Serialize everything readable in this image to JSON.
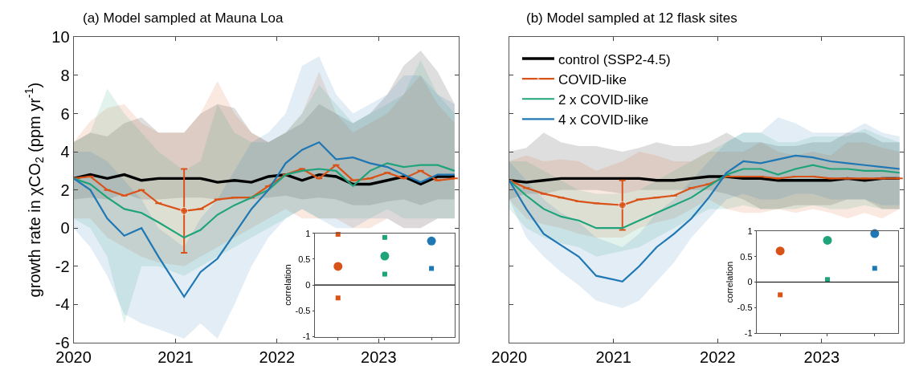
{
  "chart_data": [
    {
      "type": "line",
      "title": "(a) Model sampled at Mauna Loa",
      "ylabel": "growth rate in χCO$_{2}$ (ppm yr$^{-1}$)",
      "x": [
        "2020-01",
        "2020-03",
        "2020-05",
        "2020-07",
        "2020-09",
        "2020-11",
        "2021-02",
        "2021-04",
        "2021-06",
        "2021-08",
        "2021-10",
        "2021-12",
        "2022-02",
        "2022-04",
        "2022-06",
        "2022-08",
        "2022-10",
        "2022-12",
        "2023-02",
        "2023-04",
        "2023-06",
        "2023-08",
        "2023-10"
      ],
      "xlim": [
        "2020-01-01",
        "2023-10-16"
      ],
      "xticks": [
        "2020",
        "2021",
        "2022",
        "2023"
      ],
      "ylim": [
        -6,
        10
      ],
      "yticks": [
        -6,
        -4,
        -2,
        0,
        2,
        4,
        6,
        8,
        10
      ],
      "series": [
        {
          "color": "#000000",
          "values": [
            2.6,
            2.8,
            2.6,
            2.8,
            2.5,
            2.6,
            2.6,
            2.6,
            2.4,
            2.5,
            2.4,
            2.7,
            2.8,
            2.5,
            2.8,
            2.7,
            2.3,
            2.3,
            2.5,
            2.7,
            2.3,
            2.7,
            2.7
          ],
          "lower": [
            1.5,
            1.6,
            1.5,
            1.8,
            1.5,
            1.5,
            1.6,
            1.6,
            1.5,
            1.5,
            1.5,
            1.6,
            1.7,
            1.5,
            1.6,
            1.5,
            1.2,
            1.2,
            1.4,
            1.5,
            1.2,
            1.5,
            1.5
          ],
          "upper": [
            4.5,
            5.0,
            4.8,
            5.5,
            5.8,
            5.0,
            5.0,
            6.0,
            6.5,
            6.3,
            5.0,
            4.5,
            5.0,
            5.5,
            6.5,
            6.0,
            5.5,
            6.0,
            7.0,
            8.5,
            9.3,
            8.2,
            6.5
          ]
        },
        {
          "color": "#d95319",
          "values": [
            2.6,
            2.7,
            2.0,
            1.7,
            2.0,
            1.3,
            0.9,
            1.0,
            1.5,
            1.6,
            1.6,
            2.2,
            2.8,
            3.1,
            2.6,
            3.3,
            2.5,
            2.6,
            2.9,
            2.6,
            3.0,
            2.5,
            2.6
          ],
          "errors": [
            null,
            null,
            null,
            null,
            null,
            null,
            [
              -1.3,
              3.1
            ],
            null,
            null,
            null,
            null,
            null,
            null,
            null,
            null,
            null,
            null,
            null,
            null,
            null,
            null,
            null,
            null
          ],
          "lower": [
            0.5,
            0.5,
            -0.5,
            -1.0,
            -1.5,
            -1.8,
            -2.0,
            -1.5,
            -1.0,
            -0.5,
            0.0,
            0.5,
            1.0,
            0.5,
            0.5,
            0.5,
            0.0,
            0.0,
            0.5,
            0.0,
            0.0,
            0.5,
            0.5
          ],
          "upper": [
            4.5,
            5.6,
            6.3,
            6.5,
            5.5,
            5.0,
            5.0,
            6.0,
            7.7,
            6.0,
            5.0,
            4.5,
            5.0,
            6.0,
            8.2,
            6.0,
            5.0,
            5.5,
            6.0,
            7.0,
            8.0,
            6.5,
            5.5
          ]
        },
        {
          "color": "#1fa37a",
          "values": [
            2.6,
            2.3,
            1.6,
            1.0,
            0.8,
            0.3,
            -0.5,
            -0.1,
            0.7,
            1.2,
            1.6,
            2.0,
            2.8,
            3.0,
            3.1,
            3.0,
            2.2,
            3.0,
            3.4,
            3.2,
            3.3,
            3.3,
            3.0
          ],
          "lower": [
            0.5,
            0.0,
            -1.5,
            -5.0,
            -2.0,
            -2.0,
            -2.5,
            -2.0,
            -1.5,
            -1.0,
            -0.5,
            0.0,
            0.5,
            1.0,
            0.5,
            0.5,
            0.5,
            0.5,
            1.0,
            0.5,
            0.5,
            0.5,
            0.5
          ],
          "upper": [
            4.5,
            5.0,
            7.3,
            6.0,
            5.0,
            4.0,
            3.0,
            3.5,
            6.5,
            5.0,
            4.5,
            4.5,
            5.0,
            6.0,
            7.5,
            6.5,
            5.5,
            6.0,
            6.5,
            7.0,
            8.8,
            7.0,
            6.0
          ]
        },
        {
          "color": "#1f77b4",
          "values": [
            2.6,
            2.0,
            0.5,
            -0.4,
            0.0,
            -1.5,
            -3.6,
            -2.3,
            -1.6,
            -0.3,
            1.0,
            2.0,
            3.4,
            4.1,
            4.5,
            3.6,
            3.7,
            3.4,
            3.2,
            2.8,
            2.4,
            2.8,
            2.8
          ],
          "lower": [
            0.0,
            -1.0,
            -2.5,
            -4.5,
            -5.0,
            -5.3,
            -5.8,
            -5.0,
            -5.8,
            -4.0,
            -2.0,
            -0.5,
            0.5,
            1.0,
            0.5,
            0.0,
            0.0,
            0.5,
            0.5,
            0.0,
            0.0,
            0.5,
            0.5
          ],
          "upper": [
            4.0,
            4.0,
            3.5,
            2.5,
            1.5,
            0.0,
            -1.0,
            0.5,
            1.5,
            3.0,
            4.5,
            5.0,
            6.0,
            8.5,
            9.0,
            7.0,
            6.0,
            6.5,
            7.0,
            8.0,
            8.0,
            7.0,
            6.5
          ]
        }
      ]
    },
    {
      "type": "line",
      "title": "(b) Model sampled at 12 flask sites",
      "tick_labels": "x",
      "x": [
        "2020-01",
        "2020-03",
        "2020-05",
        "2020-07",
        "2020-09",
        "2020-11",
        "2021-02",
        "2021-04",
        "2021-06",
        "2021-08",
        "2021-10",
        "2021-12",
        "2022-02",
        "2022-04",
        "2022-06",
        "2022-08",
        "2022-10",
        "2022-12",
        "2023-02",
        "2023-04",
        "2023-06",
        "2023-08",
        "2023-10"
      ],
      "xlim": [
        "2020-01-01",
        "2023-10-16"
      ],
      "xticks": [
        "2020",
        "2021",
        "2022",
        "2023"
      ],
      "ylim": [
        -6,
        10
      ],
      "yticks": [
        -6,
        -4,
        -2,
        0,
        2,
        4,
        6,
        8,
        10
      ],
      "legend": "top left",
      "series": [
        {
          "name": "control (SSP2-4.5)",
          "color": "#000000",
          "values": [
            2.5,
            2.4,
            2.5,
            2.6,
            2.6,
            2.6,
            2.6,
            2.6,
            2.5,
            2.5,
            2.6,
            2.7,
            2.7,
            2.6,
            2.6,
            2.5,
            2.5,
            2.5,
            2.5,
            2.6,
            2.5,
            2.6,
            2.6
          ],
          "lower": [
            1.5,
            1.8,
            1.8,
            2.0,
            2.0,
            2.0,
            1.8,
            2.0,
            2.0,
            2.0,
            2.0,
            2.0,
            1.8,
            1.5,
            1.0,
            1.0,
            1.2,
            1.2,
            1.2,
            1.5,
            1.5,
            1.0,
            1.0
          ],
          "upper": [
            4.0,
            4.2,
            5.0,
            4.5,
            4.3,
            4.3,
            4.0,
            4.2,
            4.5,
            4.3,
            4.3,
            4.5,
            5.0,
            4.5,
            4.5,
            4.3,
            4.3,
            4.5,
            4.5,
            5.0,
            5.0,
            4.5,
            4.5
          ]
        },
        {
          "name": "COVID-like",
          "color": "#d95319",
          "values": [
            2.5,
            2.1,
            1.8,
            1.6,
            1.4,
            1.3,
            1.2,
            1.5,
            1.6,
            1.7,
            2.1,
            2.3,
            2.7,
            2.7,
            2.7,
            2.6,
            2.7,
            2.7,
            2.6,
            2.6,
            2.6,
            2.6,
            2.6
          ],
          "errors": [
            null,
            null,
            null,
            null,
            null,
            null,
            [
              -0.1,
              2.5
            ],
            null,
            null,
            null,
            null,
            null,
            null,
            null,
            null,
            null,
            null,
            null,
            null,
            null,
            null,
            null,
            null
          ],
          "lower": [
            1.5,
            0.5,
            0.2,
            0.0,
            -0.3,
            -0.5,
            -0.5,
            0.0,
            0.3,
            0.5,
            1.0,
            1.5,
            1.0,
            0.8,
            0.8,
            1.0,
            0.8,
            1.0,
            0.8,
            0.5,
            0.8,
            0.5,
            1.0
          ],
          "upper": [
            3.5,
            3.8,
            3.5,
            3.6,
            3.5,
            3.0,
            3.5,
            4.0,
            3.8,
            3.5,
            3.5,
            4.0,
            4.0,
            4.0,
            4.5,
            4.0,
            3.8,
            4.0,
            3.8,
            4.5,
            4.5,
            4.2,
            4.0
          ]
        },
        {
          "name": "2 x COVID-like",
          "color": "#1fa37a",
          "values": [
            2.5,
            1.7,
            1.0,
            0.6,
            0.4,
            0.0,
            0.0,
            0.4,
            0.8,
            1.2,
            1.6,
            2.2,
            2.8,
            3.1,
            3.1,
            2.8,
            3.1,
            3.3,
            3.1,
            3.1,
            3.0,
            3.0,
            2.9
          ],
          "lower": [
            1.0,
            0.0,
            -0.5,
            -0.8,
            -1.0,
            -1.5,
            -1.2,
            -1.0,
            -0.5,
            0.0,
            0.5,
            1.0,
            1.0,
            1.2,
            1.0,
            1.0,
            1.0,
            1.2,
            1.0,
            1.0,
            1.2,
            1.0,
            1.0
          ],
          "upper": [
            3.5,
            3.5,
            3.0,
            2.5,
            2.0,
            1.8,
            1.8,
            2.0,
            2.5,
            3.0,
            3.5,
            4.0,
            4.5,
            5.0,
            5.0,
            4.5,
            4.5,
            4.8,
            4.8,
            4.8,
            5.2,
            4.8,
            4.5
          ]
        },
        {
          "name": "4 x COVID-like",
          "color": "#1f77b4",
          "values": [
            2.5,
            1.0,
            -0.3,
            -0.9,
            -1.5,
            -2.5,
            -2.8,
            -2.0,
            -1.0,
            -0.3,
            0.5,
            1.6,
            2.9,
            3.5,
            3.4,
            3.6,
            3.8,
            3.7,
            3.5,
            3.4,
            3.3,
            3.2,
            3.1
          ],
          "lower": [
            1.5,
            -0.5,
            -1.5,
            -2.3,
            -3.0,
            -3.8,
            -4.2,
            -3.8,
            -2.8,
            -1.8,
            -0.5,
            0.5,
            1.5,
            1.8,
            1.5,
            1.5,
            1.8,
            1.8,
            1.5,
            1.5,
            1.5,
            1.2,
            1.2
          ],
          "upper": [
            3.5,
            2.5,
            1.5,
            0.8,
            0.3,
            -0.5,
            -1.0,
            -0.3,
            0.8,
            1.5,
            2.5,
            3.5,
            4.5,
            5.0,
            5.0,
            5.8,
            5.5,
            5.0,
            5.0,
            5.0,
            5.5,
            5.0,
            4.8
          ]
        }
      ]
    },
    {
      "type": "scatter",
      "ylabel": "correlation",
      "categories": [
        null,
        null,
        null
      ],
      "ylim": [
        -1,
        1
      ],
      "yticks": [
        -1,
        -0.5,
        0,
        0.5,
        1
      ],
      "ref_lines": [
        {
          "axis": "y",
          "value": 0,
          "color": "#000000"
        }
      ],
      "series": [
        {
          "marker": "circle",
          "colors": [
            "#d95319",
            "#1fa37a",
            "#1f77b4"
          ],
          "values": [
            0.36,
            0.56,
            0.85
          ]
        },
        {
          "marker": "square",
          "colors": [
            "#d95319",
            "#1fa37a",
            "#1f77b4"
          ],
          "values": [
            -0.25,
            0.21,
            0.32
          ]
        },
        {
          "marker": "square",
          "colors": [
            "#d95319",
            "#1fa37a",
            "#1f77b4"
          ],
          "values": [
            0.98,
            0.92,
            null
          ]
        }
      ]
    },
    {
      "type": "scatter",
      "ylabel": "correlation",
      "categories": [
        null,
        null,
        null
      ],
      "ylim": [
        -1,
        1
      ],
      "yticks": [
        -1,
        -0.5,
        0,
        0.5,
        1
      ],
      "ref_lines": [
        {
          "axis": "y",
          "value": 0,
          "color": "#000000"
        }
      ],
      "series": [
        {
          "marker": "circle",
          "colors": [
            "#d95319",
            "#1fa37a",
            "#1f77b4"
          ],
          "values": [
            0.61,
            0.82,
            0.95
          ]
        },
        {
          "marker": "square",
          "colors": [
            "#d95319",
            "#1fa37a",
            "#1f77b4"
          ],
          "values": [
            -0.25,
            0.05,
            0.27
          ]
        }
      ]
    }
  ]
}
